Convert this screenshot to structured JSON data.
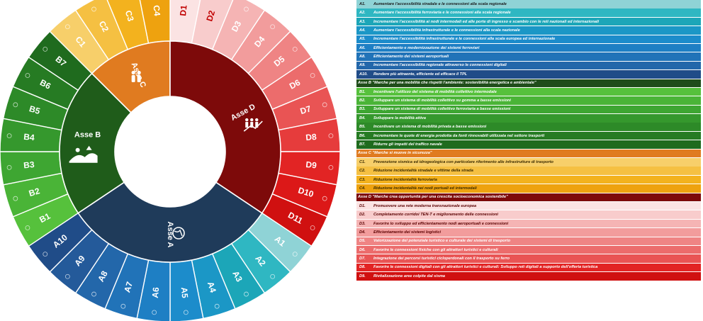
{
  "wheel": {
    "axes": [
      {
        "id": "A",
        "label": "Asse A",
        "color": "#1f3b5a",
        "icon": "globe-icon"
      },
      {
        "id": "B",
        "label": "Asse B",
        "color": "#1f5c1a",
        "icon": "landscape-icon"
      },
      {
        "id": "C",
        "label": "Asse C",
        "color": "#e07b20",
        "icon": "people-icon"
      },
      {
        "id": "D",
        "label": "Asse D",
        "color": "#7d0a0a",
        "icon": "growth-chart-icon"
      }
    ],
    "segments": [
      {
        "code": "D1",
        "color": "#fbe3e3",
        "text_color": "#c00000"
      },
      {
        "code": "D2",
        "color": "#f8cccc",
        "text_color": "#c00000"
      },
      {
        "code": "D3",
        "color": "#f5b4b4",
        "text_color": "#ffffff"
      },
      {
        "code": "D4",
        "color": "#f29c9c",
        "text_color": "#ffffff"
      },
      {
        "code": "D5",
        "color": "#ef8484",
        "text_color": "#ffffff"
      },
      {
        "code": "D6",
        "color": "#ec6c6c",
        "text_color": "#ffffff"
      },
      {
        "code": "D7",
        "color": "#e95454",
        "text_color": "#ffffff"
      },
      {
        "code": "D8",
        "color": "#e63c3c",
        "text_color": "#ffffff"
      },
      {
        "code": "D9",
        "color": "#e22424",
        "text_color": "#ffffff"
      },
      {
        "code": "D10",
        "color": "#dc1818",
        "text_color": "#ffffff"
      },
      {
        "code": "D11",
        "color": "#d01010",
        "text_color": "#ffffff"
      },
      {
        "code": "A1",
        "color": "#8fd3d6",
        "text_color": "#ffffff"
      },
      {
        "code": "A2",
        "color": "#2fb7c2",
        "text_color": "#ffffff"
      },
      {
        "code": "A3",
        "color": "#1ca6b8",
        "text_color": "#ffffff"
      },
      {
        "code": "A4",
        "color": "#1b97c6",
        "text_color": "#ffffff"
      },
      {
        "code": "A5",
        "color": "#1c8ccb",
        "text_color": "#ffffff"
      },
      {
        "code": "A6",
        "color": "#1e7fc4",
        "text_color": "#ffffff"
      },
      {
        "code": "A7",
        "color": "#2173b8",
        "text_color": "#ffffff"
      },
      {
        "code": "A8",
        "color": "#2367aa",
        "text_color": "#ffffff"
      },
      {
        "code": "A9",
        "color": "#245a9a",
        "text_color": "#ffffff"
      },
      {
        "code": "A10",
        "color": "#204c88",
        "text_color": "#ffffff"
      },
      {
        "code": "B1",
        "color": "#56c13c",
        "text_color": "#ffffff"
      },
      {
        "code": "B2",
        "color": "#4ab437",
        "text_color": "#ffffff"
      },
      {
        "code": "B3",
        "color": "#3ea632",
        "text_color": "#ffffff"
      },
      {
        "code": "B4",
        "color": "#35982d",
        "text_color": "#ffffff"
      },
      {
        "code": "B5",
        "color": "#2d8a28",
        "text_color": "#ffffff"
      },
      {
        "code": "B6",
        "color": "#267b23",
        "text_color": "#ffffff"
      },
      {
        "code": "B7",
        "color": "#1f6b1e",
        "text_color": "#ffffff"
      },
      {
        "code": "C1",
        "color": "#f7cf6a",
        "text_color": "#ffffff"
      },
      {
        "code": "C2",
        "color": "#f5c042",
        "text_color": "#ffffff"
      },
      {
        "code": "C3",
        "color": "#f3b21e",
        "text_color": "#ffffff"
      },
      {
        "code": "C4",
        "color": "#eea20f",
        "text_color": "#ffffff"
      }
    ]
  },
  "table": {
    "rows": [
      {
        "type": "item",
        "code": "A1.",
        "text": "Aumentare l'accessibilità stradale e le connessioni alla scala regionale",
        "bg": "#8fd3d6",
        "fg": "#1a1a1a"
      },
      {
        "type": "item",
        "code": "A2.",
        "text": "Aumentare l'accessibilità ferroviaria e le connessioni alla scala regionale",
        "bg": "#2fb7c2",
        "fg": "#ffffff"
      },
      {
        "type": "item",
        "code": "A3.",
        "text": "Incrementare l'accessibilità ai nodi intermodali ed alle porte di ingresso e scambio con le reti nazionali ed internazionali",
        "bg": "#1ca6b8",
        "fg": "#ffffff"
      },
      {
        "type": "item",
        "code": "A4.",
        "text": "Aumentare l'accessibilità infrastrutturale e le connessioni alla scala nazionale",
        "bg": "#1b97c6",
        "fg": "#ffffff"
      },
      {
        "type": "item",
        "code": "A5.",
        "text": "Incrementare l'accessibilità infrastrutturale e le connessioni alla scala europea ed internazionale",
        "bg": "#1c8ccb",
        "fg": "#ffffff"
      },
      {
        "type": "item",
        "code": "A6.",
        "text": "Efficientamento e modernizzazione dei sistemi ferroviari",
        "bg": "#1e7fc4",
        "fg": "#ffffff"
      },
      {
        "type": "item",
        "code": "A8.",
        "text": "Efficientamento dei sistemi aeroportuali",
        "bg": "#2173b8",
        "fg": "#ffffff"
      },
      {
        "type": "item",
        "code": "A9.",
        "text": "Incrementare l'accessibilità regionale attraverso le connessioni digitali",
        "bg": "#2367aa",
        "fg": "#ffffff"
      },
      {
        "type": "item",
        "code": "A10.",
        "text": "Rendere più attraente, efficiente ed efficace il TPL",
        "bg": "#204c88",
        "fg": "#ffffff"
      },
      {
        "type": "header",
        "code": "",
        "text": "Asse B \"Marche per una mobilità che rispetti l'ambiente: sostenibilità energetica e ambientale\"",
        "bg": "#1f4d1a",
        "fg": "#ffffff"
      },
      {
        "type": "item",
        "code": "B1.",
        "text": "Incentivare l'utilizzo del sistema di mobilità collettivo intermodale",
        "bg": "#56c13c",
        "fg": "#ffffff"
      },
      {
        "type": "item",
        "code": "B2.",
        "text": "Sviluppare un sistema di mobilità collettivo su gomma a basse emissioni",
        "bg": "#4ab437",
        "fg": "#ffffff"
      },
      {
        "type": "item",
        "code": "B3.",
        "text": "Sviluppare un sistema di mobilità collettivo ferroviaria a basse emissioni",
        "bg": "#3ea632",
        "fg": "#ffffff"
      },
      {
        "type": "item",
        "code": "B4.",
        "text": "Sviluppare la mobilità attiva",
        "bg": "#35982d",
        "fg": "#ffffff"
      },
      {
        "type": "item",
        "code": "B5.",
        "text": "Incentivare un sistema di mobilità privata a basse emissioni",
        "bg": "#2d8a28",
        "fg": "#ffffff"
      },
      {
        "type": "item",
        "code": "B6.",
        "text": "Incrementare le quote di energia prodotta da fonti rinnovabili utilizzata nel settore trasporti",
        "bg": "#267b23",
        "fg": "#ffffff"
      },
      {
        "type": "item",
        "code": "B7.",
        "text": "Ridurre gli impatti del traffico navale",
        "bg": "#1f6b1e",
        "fg": "#ffffff"
      },
      {
        "type": "header",
        "code": "",
        "text": "Asse C \"Marche si muove in sicurezza\"",
        "bg": "#e07b20",
        "fg": "#ffffff"
      },
      {
        "type": "item",
        "code": "C1.",
        "text": "Prevenzione sismica ed idrogeologica con particolare riferimento alle infrastrutture di trasporto",
        "bg": "#f7cf6a",
        "fg": "#3a2a00"
      },
      {
        "type": "item",
        "code": "C2.",
        "text": "Riduzione incidentalità stradale e vittime della strada",
        "bg": "#f5c042",
        "fg": "#3a2a00"
      },
      {
        "type": "item",
        "code": "C3.",
        "text": "Riduzione incidentalità ferroviaria",
        "bg": "#f3b21e",
        "fg": "#3a2a00"
      },
      {
        "type": "item",
        "code": "C4.",
        "text": "Riduzione incidentalità nei nodi portuali ed intermodali",
        "bg": "#eea20f",
        "fg": "#3a2a00"
      },
      {
        "type": "header",
        "code": "",
        "text": "Asse D \"Marche crea opportunità per una crescita socioeconomica sostenibile\"",
        "bg": "#7d0a0a",
        "fg": "#ffffff"
      },
      {
        "type": "item",
        "code": "D1.",
        "text": "Promuovere una rete moderna transnazionale europea",
        "bg": "#fbe3e3",
        "fg": "#5a0000"
      },
      {
        "type": "item",
        "code": "D2.",
        "text": "Completamento corridoi TEN-T e miglioramento delle connessioni",
        "bg": "#f8cccc",
        "fg": "#5a0000"
      },
      {
        "type": "item",
        "code": "D3.",
        "text": "Favorire lo sviluppo ed efficientamento nodi aeroportuali e connessioni",
        "bg": "#f5b4b4",
        "fg": "#5a0000"
      },
      {
        "type": "item",
        "code": "D4.",
        "text": "Efficientamento dei sistemi logistici",
        "bg": "#f29c9c",
        "fg": "#5a0000"
      },
      {
        "type": "item",
        "code": "D5.",
        "text": "Valorizzazione del potenziale turistico e culturale dei sistemi di trasporto",
        "bg": "#ef8484",
        "fg": "#ffffff"
      },
      {
        "type": "item",
        "code": "D6.",
        "text": "Favorire le connessioni fisiche con gli attrattori turistici e culturali",
        "bg": "#ec6c6c",
        "fg": "#ffffff"
      },
      {
        "type": "item",
        "code": "D7.",
        "text": "Integrazione dei percorsi turistici cicloperdonali con il trasporto su ferro",
        "bg": "#e95454",
        "fg": "#ffffff"
      },
      {
        "type": "item",
        "code": "D8.",
        "text": "Favorire le connessioni digitali con gli attrattori turistici e culturali: Sviluppo reti digitali a supporto dell'offerta turistica",
        "bg": "#e22424",
        "fg": "#ffffff"
      },
      {
        "type": "item",
        "code": "D9.",
        "text": "Rivitalizzazione aree colpite dal sisma",
        "bg": "#d01010",
        "fg": "#ffffff"
      }
    ]
  }
}
